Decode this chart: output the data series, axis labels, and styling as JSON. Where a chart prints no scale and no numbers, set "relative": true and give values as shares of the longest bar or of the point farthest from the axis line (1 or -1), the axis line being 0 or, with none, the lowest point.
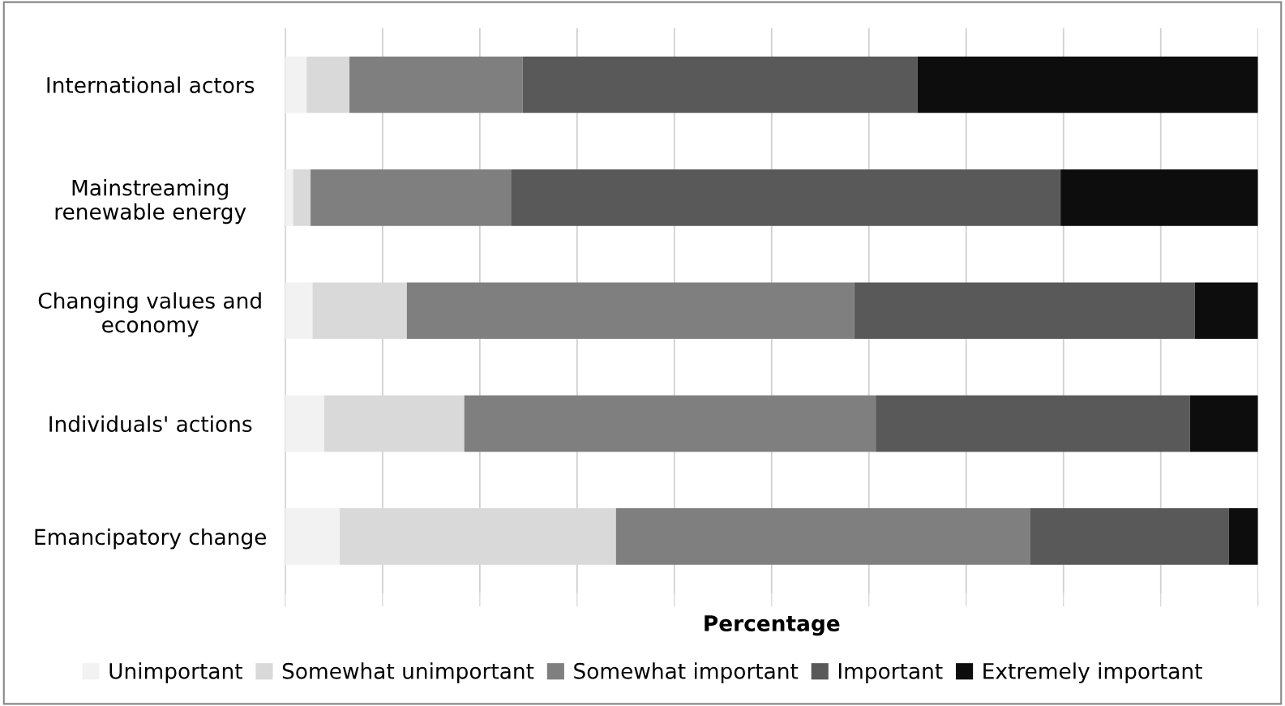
{
  "chart_data": {
    "type": "bar",
    "orientation": "horizontal",
    "stacked": true,
    "relative": true,
    "xlabel": "Percentage",
    "categories": [
      "International actors",
      "Mainstreaming\nrenewable energy",
      "Changing values and\neconomy",
      "Individuals' actions",
      "Emancipatory change"
    ],
    "series": [
      {
        "name": "Unimportant",
        "color": "#f2f2f2",
        "values": [
          0.022,
          0.008,
          0.028,
          0.04,
          0.056
        ]
      },
      {
        "name": "Somewhat unimportant",
        "color": "#d9d9d9",
        "values": [
          0.044,
          0.018,
          0.097,
          0.144,
          0.284
        ]
      },
      {
        "name": "Somewhat important",
        "color": "#7f7f7f",
        "values": [
          0.178,
          0.206,
          0.46,
          0.423,
          0.426
        ]
      },
      {
        "name": "Important",
        "color": "#595959",
        "values": [
          0.406,
          0.565,
          0.35,
          0.323,
          0.204
        ]
      },
      {
        "name": "Extremely important",
        "color": "#0d0d0d",
        "values": [
          0.35,
          0.203,
          0.065,
          0.07,
          0.03
        ]
      }
    ],
    "grid": "x",
    "legend": "bottom"
  }
}
